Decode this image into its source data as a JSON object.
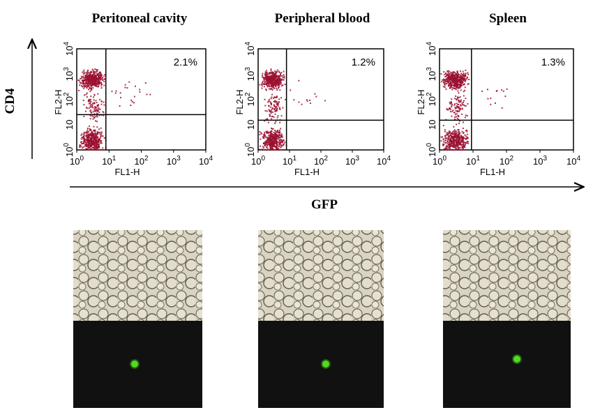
{
  "figure": {
    "y_axis_label": "CD4",
    "x_axis_label": "GFP",
    "colors": {
      "dots": "#9b1030",
      "gfp_cell": "#4fdc1e",
      "dark_field": "#111111",
      "bright_field": "#d8d2c0"
    }
  },
  "chart_data": [
    {
      "type": "scatter",
      "title": "Peritoneal cavity",
      "xlabel": "FL1-H",
      "ylabel": "FL2-H",
      "xscale": "log",
      "yscale": "log",
      "xlim": [
        1,
        10000
      ],
      "ylim": [
        1,
        10000
      ],
      "xticks": [
        "10^0",
        "10^1",
        "10^2",
        "10^3",
        "10^4"
      ],
      "yticks": [
        "10^0",
        "10",
        "10^2",
        "10^3",
        "10^4"
      ],
      "quadrant_gate": {
        "x": 8,
        "y": 25
      },
      "upper_right_percent": "2.1%"
    },
    {
      "type": "scatter",
      "title": "Peripheral blood",
      "xlabel": "FL1-H",
      "ylabel": "FL2-H",
      "xscale": "log",
      "yscale": "log",
      "xlim": [
        1,
        10000
      ],
      "ylim": [
        1,
        10000
      ],
      "xticks": [
        "10^0",
        "10^1",
        "10^2",
        "10^3",
        "10^4"
      ],
      "yticks": [
        "10^0",
        "10",
        "10^2",
        "10^3",
        "10^4"
      ],
      "quadrant_gate": {
        "x": 8,
        "y": 15
      },
      "upper_right_percent": "1.2%"
    },
    {
      "type": "scatter",
      "title": "Spleen",
      "xlabel": "FL1-H",
      "ylabel": "FL2-H",
      "xscale": "log",
      "yscale": "log",
      "xlim": [
        1,
        10000
      ],
      "ylim": [
        1,
        10000
      ],
      "xticks": [
        "10^0",
        "10^1",
        "10^2",
        "10^3",
        "10^4"
      ],
      "yticks": [
        "10^0",
        "10",
        "10^2",
        "10^3",
        "10^4"
      ],
      "quadrant_gate": {
        "x": 9,
        "y": 15
      },
      "upper_right_percent": "1.3%"
    }
  ]
}
